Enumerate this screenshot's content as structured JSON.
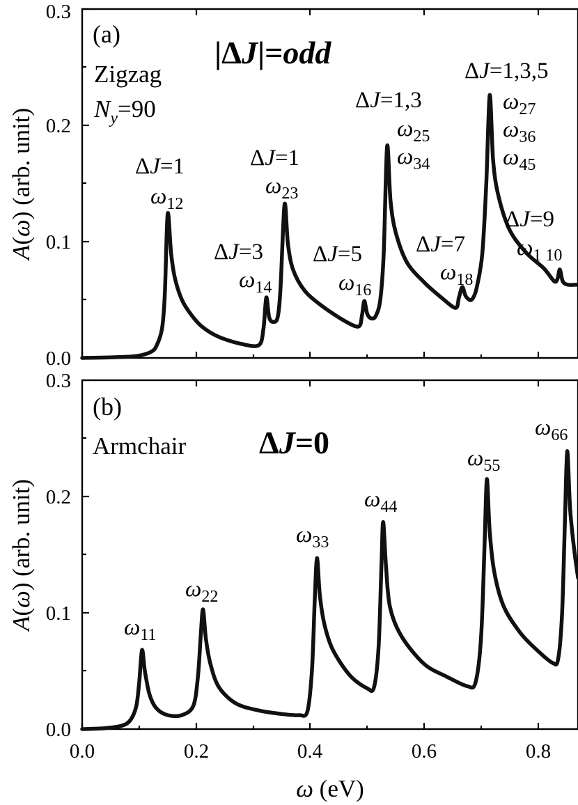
{
  "chart_data": [
    {
      "type": "line",
      "panel": "(a)",
      "panel_label": "(a)",
      "edge_type": "Zigzag",
      "ny_label": "N",
      "ny_sub": "y",
      "ny_value": "=90",
      "rule": {
        "prefix": "|Δ",
        "J": "J",
        "suffix": "|=",
        "odd": "odd"
      },
      "xlabel": "",
      "ylabel": {
        "a": "A",
        "omega": "ω",
        "rest": " (arb. unit)"
      },
      "xlim": [
        0.0,
        0.87
      ],
      "ylim": [
        0.0,
        0.3
      ],
      "y_tick_labels": [
        "0.0",
        "0.1",
        "0.2",
        "0.3"
      ],
      "peaks": [
        {
          "x": 0.15,
          "y": 0.124,
          "label": "ω12"
        },
        {
          "x": 0.323,
          "y": 0.052,
          "label": "ω14"
        },
        {
          "x": 0.355,
          "y": 0.132,
          "label": "ω23"
        },
        {
          "x": 0.495,
          "y": 0.049,
          "label": "ω16"
        },
        {
          "x": 0.535,
          "y": 0.182,
          "label": "ω25, ω34"
        },
        {
          "x": 0.667,
          "y": 0.061,
          "label": "ω18"
        },
        {
          "x": 0.715,
          "y": 0.226,
          "label": "ω27, ω36, ω45"
        },
        {
          "x": 0.838,
          "y": 0.076,
          "label": "ω1 10"
        }
      ],
      "curve": {
        "x": [
          0.0,
          0.05,
          0.08,
          0.1,
          0.12,
          0.13,
          0.14,
          0.145,
          0.15,
          0.156,
          0.163,
          0.175,
          0.19,
          0.21,
          0.24,
          0.28,
          0.31,
          0.318,
          0.323,
          0.328,
          0.335,
          0.343,
          0.348,
          0.355,
          0.361,
          0.37,
          0.39,
          0.42,
          0.46,
          0.485,
          0.491,
          0.495,
          0.5,
          0.507,
          0.515,
          0.523,
          0.529,
          0.535,
          0.541,
          0.55,
          0.57,
          0.6,
          0.63,
          0.655,
          0.661,
          0.667,
          0.673,
          0.683,
          0.692,
          0.702,
          0.709,
          0.715,
          0.721,
          0.73,
          0.75,
          0.78,
          0.81,
          0.828,
          0.834,
          0.838,
          0.843,
          0.852,
          0.87
        ],
        "y": [
          0.0,
          0.0005,
          0.001,
          0.002,
          0.005,
          0.01,
          0.025,
          0.055,
          0.124,
          0.09,
          0.068,
          0.05,
          0.038,
          0.027,
          0.018,
          0.012,
          0.011,
          0.025,
          0.052,
          0.035,
          0.031,
          0.035,
          0.06,
          0.132,
          0.098,
          0.076,
          0.058,
          0.045,
          0.032,
          0.027,
          0.037,
          0.049,
          0.038,
          0.034,
          0.036,
          0.05,
          0.09,
          0.182,
          0.135,
          0.108,
          0.082,
          0.065,
          0.052,
          0.043,
          0.052,
          0.061,
          0.053,
          0.05,
          0.06,
          0.09,
          0.15,
          0.226,
          0.17,
          0.14,
          0.11,
          0.09,
          0.077,
          0.066,
          0.068,
          0.076,
          0.066,
          0.063,
          0.063
        ]
      },
      "annotations": [
        {
          "delta": "Δ",
          "j": "J",
          "rest": "=1",
          "w_sub": "12"
        },
        {
          "delta": "Δ",
          "j": "J",
          "rest": "=1",
          "w_sub": "23"
        },
        {
          "delta": "Δ",
          "j": "J",
          "rest": "=3",
          "w_sub": "14"
        },
        {
          "delta": "Δ",
          "j": "J",
          "rest": "=1,3",
          "w_sub": "25",
          "w_sub2": "34"
        },
        {
          "delta": "Δ",
          "j": "J",
          "rest": "=5",
          "w_sub": "16"
        },
        {
          "delta": "Δ",
          "j": "J",
          "rest": "=1,3,5",
          "w_sub": "27",
          "w_sub2": "36",
          "w_sub3": "45"
        },
        {
          "delta": "Δ",
          "j": "J",
          "rest": "=7",
          "w_sub": "18"
        },
        {
          "delta": "Δ",
          "j": "J",
          "rest": "=9",
          "w_sub": "1 10"
        }
      ]
    },
    {
      "type": "line",
      "panel": "(b)",
      "panel_label": "(b)",
      "edge_type": "Armchair",
      "rule": {
        "prefix": "Δ",
        "J": "J",
        "suffix": "=0"
      },
      "xlabel": {
        "omega": "ω",
        "rest": " (eV)"
      },
      "ylabel": {
        "a": "A",
        "omega": "ω",
        "rest": " (arb. unit)"
      },
      "xlim": [
        0.0,
        0.87
      ],
      "ylim": [
        0.0,
        0.3
      ],
      "x_tick_labels": [
        "0.0",
        "0.2",
        "0.4",
        "0.6",
        "0.8"
      ],
      "y_tick_labels": [
        "0.0",
        "0.1",
        "0.2",
        "0.3"
      ],
      "peaks": [
        {
          "x": 0.105,
          "y": 0.068,
          "label": "ω11"
        },
        {
          "x": 0.212,
          "y": 0.103,
          "label": "ω22"
        },
        {
          "x": 0.412,
          "y": 0.147,
          "label": "ω33"
        },
        {
          "x": 0.528,
          "y": 0.178,
          "label": "ω44"
        },
        {
          "x": 0.71,
          "y": 0.215,
          "label": "ω55"
        },
        {
          "x": 0.851,
          "y": 0.239,
          "label": "ω66"
        }
      ],
      "curve": {
        "x": [
          0.0,
          0.04,
          0.07,
          0.085,
          0.095,
          0.1,
          0.105,
          0.11,
          0.118,
          0.13,
          0.15,
          0.175,
          0.195,
          0.203,
          0.208,
          0.212,
          0.217,
          0.225,
          0.24,
          0.27,
          0.31,
          0.35,
          0.38,
          0.395,
          0.403,
          0.408,
          0.412,
          0.417,
          0.425,
          0.44,
          0.47,
          0.5,
          0.512,
          0.52,
          0.525,
          0.528,
          0.533,
          0.54,
          0.56,
          0.6,
          0.64,
          0.675,
          0.69,
          0.7,
          0.706,
          0.71,
          0.715,
          0.723,
          0.74,
          0.77,
          0.8,
          0.825,
          0.835,
          0.842,
          0.847,
          0.851,
          0.856,
          0.863,
          0.87
        ],
        "y": [
          0.0,
          0.0008,
          0.003,
          0.008,
          0.02,
          0.04,
          0.068,
          0.05,
          0.03,
          0.018,
          0.012,
          0.012,
          0.02,
          0.045,
          0.08,
          0.103,
          0.078,
          0.056,
          0.036,
          0.022,
          0.016,
          0.013,
          0.012,
          0.015,
          0.05,
          0.11,
          0.147,
          0.115,
          0.09,
          0.068,
          0.046,
          0.035,
          0.036,
          0.07,
          0.14,
          0.178,
          0.14,
          0.105,
          0.08,
          0.056,
          0.045,
          0.037,
          0.04,
          0.08,
          0.16,
          0.215,
          0.17,
          0.135,
          0.105,
          0.082,
          0.067,
          0.057,
          0.06,
          0.1,
          0.18,
          0.239,
          0.19,
          0.155,
          0.13
        ]
      },
      "annotations": [
        {
          "w_sub": "11"
        },
        {
          "w_sub": "22"
        },
        {
          "w_sub": "33"
        },
        {
          "w_sub": "44"
        },
        {
          "w_sub": "55"
        },
        {
          "w_sub": "66"
        }
      ]
    }
  ]
}
